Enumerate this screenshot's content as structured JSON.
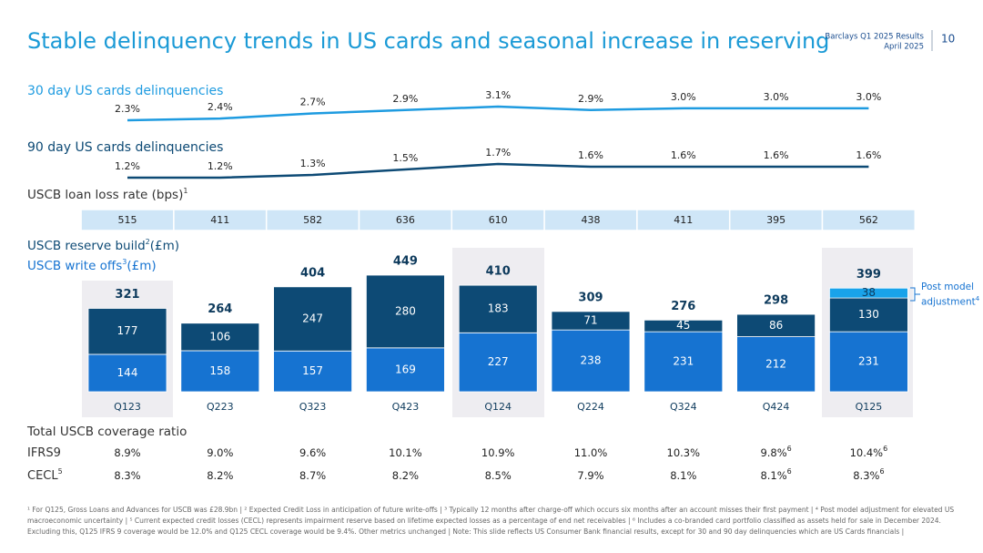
{
  "header": {
    "title": "Stable delinquency trends in US cards and seasonal increase in reserving",
    "source": "Barclays Q1 2025 Results",
    "date": "April 2025",
    "page": "10"
  },
  "chart_data": [
    {
      "type": "line",
      "title": "30 day US cards delinquencies",
      "color": "#1e9be0",
      "values": [
        2.3,
        2.4,
        2.7,
        2.9,
        3.1,
        2.9,
        3.0,
        3.0,
        3.0
      ],
      "value_labels": [
        "2.3%",
        "2.4%",
        "2.7%",
        "2.9%",
        "3.1%",
        "2.9%",
        "3.0%",
        "3.0%",
        "3.0%"
      ]
    },
    {
      "type": "line",
      "title": "90 day US cards delinquencies",
      "color": "#0d4a75",
      "values": [
        1.2,
        1.2,
        1.3,
        1.5,
        1.7,
        1.6,
        1.6,
        1.6,
        1.6
      ],
      "value_labels": [
        "1.2%",
        "1.2%",
        "1.3%",
        "1.5%",
        "1.7%",
        "1.6%",
        "1.6%",
        "1.6%",
        "1.6%"
      ]
    },
    {
      "type": "bar",
      "stacked": true,
      "categories": [
        "Q123",
        "Q223",
        "Q323",
        "Q423",
        "Q124",
        "Q224",
        "Q324",
        "Q424",
        "Q125"
      ],
      "series": [
        {
          "name": "USCB write offs",
          "name_sup": "3",
          "unit": "(£m)",
          "color": "#1673d1",
          "label_color": "#ffffff",
          "values": [
            144,
            158,
            157,
            169,
            227,
            238,
            231,
            212,
            231
          ]
        },
        {
          "name": "USCB reserve build",
          "name_sup": "2",
          "unit": "(£m)",
          "color": "#0d4a75",
          "label_color": "#ffffff",
          "values": [
            177,
            106,
            247,
            280,
            183,
            71,
            45,
            86,
            130
          ]
        },
        {
          "name": "Post model adjustment",
          "name_sup": "4",
          "color": "#19a3ea",
          "label_color": "#0d3a5c",
          "values": [
            null,
            null,
            null,
            null,
            null,
            null,
            null,
            null,
            38
          ]
        }
      ],
      "totals": [
        321,
        264,
        404,
        449,
        410,
        309,
        276,
        298,
        399
      ]
    }
  ],
  "loan_loss": {
    "title": "USCB loan loss rate (bps)",
    "title_sup": "1",
    "values": [
      515,
      411,
      582,
      636,
      610,
      438,
      411,
      395,
      562
    ]
  },
  "coverage": {
    "title": "Total USCB coverage ratio",
    "rows": [
      {
        "label": "IFRS9",
        "values": [
          "8.9%",
          "9.0%",
          "9.6%",
          "10.1%",
          "10.9%",
          "11.0%",
          "10.3%",
          "9.8%",
          "10.4%"
        ],
        "sups": [
          null,
          null,
          null,
          null,
          null,
          null,
          null,
          "6",
          "6"
        ]
      },
      {
        "label": "CECL",
        "label_sup": "5",
        "values": [
          "8.3%",
          "8.2%",
          "8.7%",
          "8.2%",
          "8.5%",
          "7.9%",
          "8.1%",
          "8.1%",
          "8.3%"
        ],
        "sups": [
          null,
          null,
          null,
          null,
          null,
          null,
          null,
          "6",
          "6"
        ]
      }
    ]
  },
  "footnotes": [
    "¹ For Q125, Gross Loans and Advances for USCB was £28.9bn | ² Expected Credit Loss in anticipation of future write-offs | ³ Typically 12 months after charge-off which occurs six months after an account misses their first payment | ⁴ Post model adjustment for elevated US",
    "macroeconomic uncertainty | ⁵ Current expected credit losses (CECL) represents impairment reserve based on lifetime expected losses as a percentage of end net receivables | ⁶ Includes a co-branded card portfolio classified as assets held for sale in December 2024.",
    "Excluding this, Q125 IFRS 9 coverage would be 12.0% and Q125 CECL coverage would be 9.4%. Other metrics unchanged | Note: This slide reflects US Consumer Bank financial results, except for 30 and 90 day delinquencies which are US Cards financials |"
  ]
}
